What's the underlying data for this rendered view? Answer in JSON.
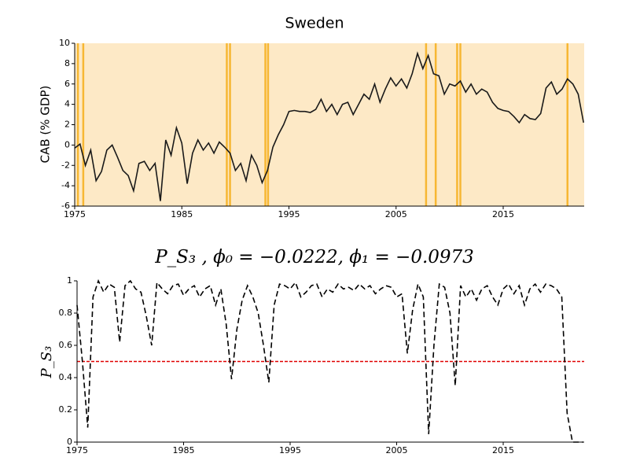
{
  "chart_data": [
    {
      "type": "line",
      "title": "Sweden",
      "y_label": "CAB (% GDP)",
      "color": "#1a1a1a",
      "background": "#fde9c6",
      "highlight_color": "#f7b733",
      "highlight_x": [
        1975.3,
        1975.8,
        1989.2,
        1989.5,
        1992.8,
        1993.05,
        2007.8,
        2008.7,
        2010.7,
        2011.0,
        2021.0
      ],
      "x": [
        1975.0,
        1975.5,
        1976.0,
        1976.5,
        1977.0,
        1977.5,
        1978.0,
        1978.5,
        1979.0,
        1979.5,
        1980.0,
        1980.5,
        1981.0,
        1981.5,
        1982.0,
        1982.5,
        1983.0,
        1983.5,
        1984.0,
        1984.5,
        1985.0,
        1985.5,
        1986.0,
        1986.5,
        1987.0,
        1987.5,
        1988.0,
        1988.5,
        1989.0,
        1989.5,
        1990.0,
        1990.5,
        1991.0,
        1991.5,
        1992.0,
        1992.5,
        1993.0,
        1993.5,
        1994.0,
        1994.5,
        1995.0,
        1995.5,
        1996.0,
        1996.5,
        1997.0,
        1997.5,
        1998.0,
        1998.5,
        1999.0,
        1999.5,
        2000.0,
        2000.5,
        2001.0,
        2001.5,
        2002.0,
        2002.5,
        2003.0,
        2003.5,
        2004.0,
        2004.5,
        2005.0,
        2005.5,
        2006.0,
        2006.5,
        2007.0,
        2007.5,
        2008.0,
        2008.5,
        2009.0,
        2009.5,
        2010.0,
        2010.5,
        2011.0,
        2011.5,
        2012.0,
        2012.5,
        2013.0,
        2013.5,
        2014.0,
        2014.5,
        2015.0,
        2015.5,
        2016.0,
        2016.5,
        2017.0,
        2017.5,
        2018.0,
        2018.5,
        2019.0,
        2019.5,
        2020.0,
        2020.5,
        2021.0,
        2021.5,
        2022.0,
        2022.5
      ],
      "values": [
        -0.3,
        0.1,
        -2.0,
        -0.5,
        -3.5,
        -2.6,
        -0.5,
        0.0,
        -1.2,
        -2.5,
        -3.0,
        -4.5,
        -1.8,
        -1.6,
        -2.5,
        -1.8,
        -5.5,
        0.5,
        -1.0,
        1.7,
        0.2,
        -3.8,
        -0.8,
        0.5,
        -0.5,
        0.2,
        -0.8,
        0.3,
        -0.2,
        -0.8,
        -2.5,
        -1.8,
        -3.5,
        -1.0,
        -2.0,
        -3.7,
        -2.5,
        -0.2,
        1.0,
        2.0,
        3.3,
        3.4,
        3.3,
        3.3,
        3.2,
        3.5,
        4.5,
        3.3,
        4.0,
        3.0,
        4.0,
        4.2,
        3.0,
        4.0,
        5.0,
        4.5,
        6.0,
        4.2,
        5.5,
        6.6,
        5.8,
        6.5,
        5.6,
        7.0,
        9.0,
        7.5,
        8.8,
        7.0,
        6.8,
        5.0,
        6.0,
        5.8,
        6.3,
        5.2,
        6.0,
        5.0,
        5.5,
        5.2,
        4.2,
        3.6,
        3.4,
        3.3,
        2.8,
        2.2,
        3.0,
        2.6,
        2.5,
        3.1,
        5.6,
        6.2,
        5.0,
        5.5,
        6.5,
        6.0,
        5.0,
        2.2
      ],
      "xlim": [
        1975,
        2022.56
      ],
      "xticks": [
        1975,
        1985,
        1995,
        2005,
        2015
      ],
      "ylim": [
        -6,
        10
      ],
      "yticks": [
        -6,
        -4,
        -2,
        0,
        2,
        4,
        6,
        8,
        10
      ]
    },
    {
      "type": "line",
      "title": "P_S₃ , ϕ₀ = −0.0222, ϕ₁ = −0.0973",
      "y_label": "P_S₃",
      "color": "#000000",
      "dashed": true,
      "hline": 0.5,
      "hline_color": "#e00000",
      "x": [
        1975.0,
        1975.5,
        1976.0,
        1976.5,
        1977.0,
        1977.5,
        1978.0,
        1978.5,
        1979.0,
        1979.5,
        1980.0,
        1980.5,
        1981.0,
        1981.5,
        1982.0,
        1982.5,
        1983.0,
        1983.5,
        1984.0,
        1984.5,
        1985.0,
        1985.5,
        1986.0,
        1986.5,
        1987.0,
        1987.5,
        1988.0,
        1988.5,
        1989.0,
        1989.5,
        1990.0,
        1990.5,
        1991.0,
        1991.5,
        1992.0,
        1992.5,
        1993.0,
        1993.5,
        1994.0,
        1994.5,
        1995.0,
        1995.5,
        1996.0,
        1996.5,
        1997.0,
        1997.5,
        1998.0,
        1998.5,
        1999.0,
        1999.5,
        2000.0,
        2000.5,
        2001.0,
        2001.5,
        2002.0,
        2002.5,
        2003.0,
        2003.5,
        2004.0,
        2004.5,
        2005.0,
        2005.5,
        2006.0,
        2006.5,
        2007.0,
        2007.5,
        2008.0,
        2008.5,
        2009.0,
        2009.5,
        2010.0,
        2010.5,
        2011.0,
        2011.5,
        2012.0,
        2012.5,
        2013.0,
        2013.5,
        2014.0,
        2014.5,
        2015.0,
        2015.5,
        2016.0,
        2016.5,
        2017.0,
        2017.5,
        2018.0,
        2018.5,
        2019.0,
        2019.5,
        2020.0,
        2020.5,
        2021.0,
        2021.5,
        2022.0,
        2022.5
      ],
      "values": [
        0.85,
        0.5,
        0.09,
        0.9,
        1.0,
        0.93,
        0.98,
        0.96,
        0.62,
        0.97,
        1.0,
        0.95,
        0.93,
        0.78,
        0.6,
        0.99,
        0.95,
        0.92,
        0.97,
        0.98,
        0.91,
        0.95,
        0.97,
        0.9,
        0.95,
        0.97,
        0.85,
        0.95,
        0.73,
        0.39,
        0.7,
        0.88,
        0.97,
        0.9,
        0.8,
        0.6,
        0.37,
        0.85,
        0.98,
        0.97,
        0.95,
        0.99,
        0.9,
        0.93,
        0.97,
        0.98,
        0.9,
        0.95,
        0.93,
        0.98,
        0.95,
        0.96,
        0.94,
        0.98,
        0.95,
        0.97,
        0.92,
        0.95,
        0.97,
        0.96,
        0.9,
        0.92,
        0.55,
        0.82,
        0.98,
        0.9,
        0.05,
        0.6,
        0.98,
        0.96,
        0.8,
        0.35,
        0.97,
        0.9,
        0.95,
        0.88,
        0.95,
        0.97,
        0.9,
        0.85,
        0.95,
        0.98,
        0.92,
        0.97,
        0.85,
        0.95,
        0.98,
        0.93,
        0.98,
        0.97,
        0.95,
        0.9,
        0.18,
        0.0,
        0.0,
        0.0
      ],
      "xlim": [
        1975,
        2022.6
      ],
      "xticks": [
        1975,
        1985,
        1995,
        2005,
        2015
      ],
      "ylim": [
        0,
        1
      ],
      "yticks": [
        0,
        0.2,
        0.4,
        0.6,
        0.8,
        1
      ]
    }
  ]
}
